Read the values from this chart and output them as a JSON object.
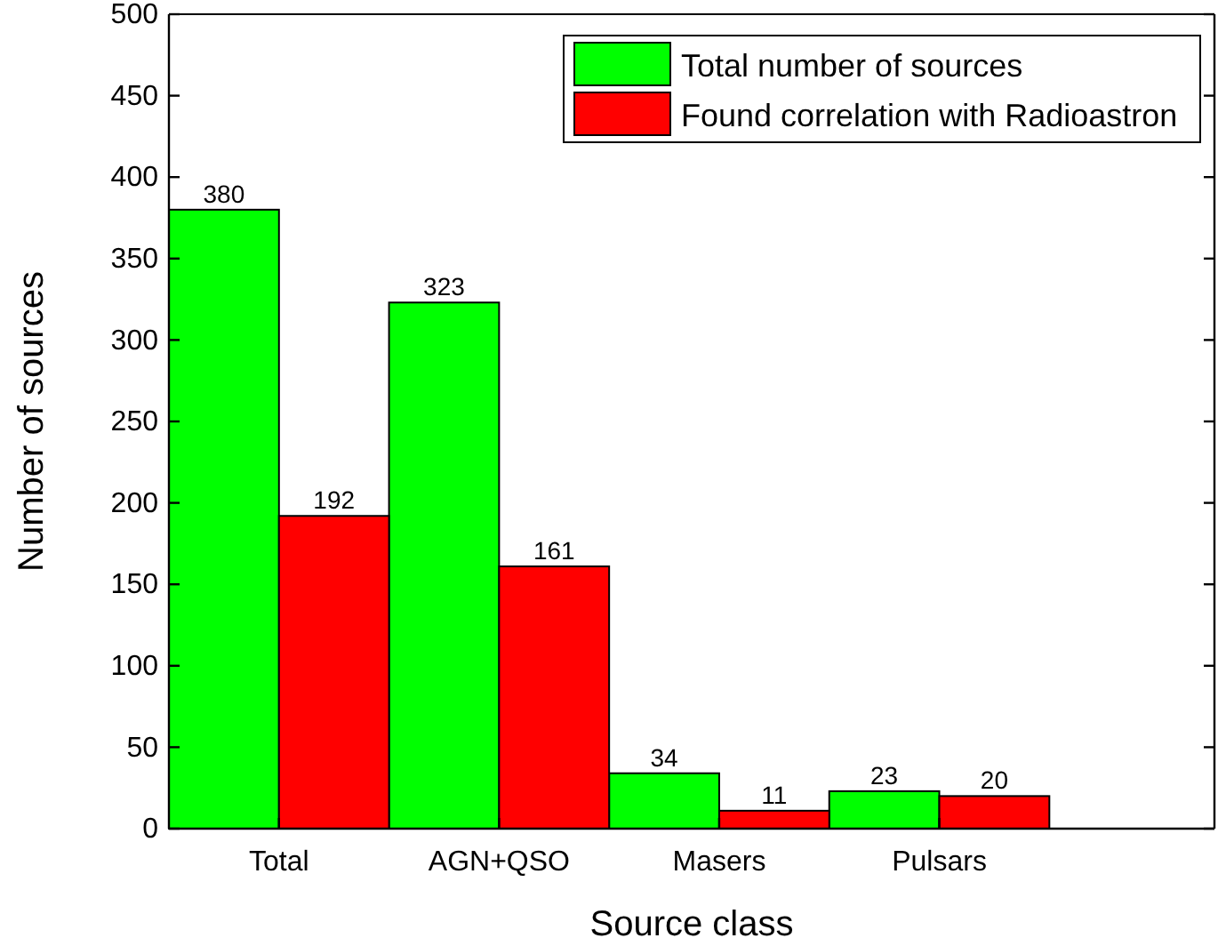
{
  "chart_data": {
    "type": "bar",
    "xlabel": "Source class",
    "ylabel": "Number of sources",
    "categories": [
      "Total",
      "AGN+QSO",
      "Masers",
      "Pulsars"
    ],
    "series": [
      {
        "name": "Total number of sources",
        "color": "#00ff00",
        "values": [
          380,
          323,
          34,
          23
        ]
      },
      {
        "name": "Found correlation with Radioastron",
        "color": "#ff0000",
        "values": [
          192,
          161,
          11,
          20
        ]
      }
    ],
    "ylim": [
      0,
      500
    ],
    "yticks": [
      0,
      50,
      100,
      150,
      200,
      250,
      300,
      350,
      400,
      450,
      500
    ],
    "data_labels": true,
    "legend": "top right"
  }
}
